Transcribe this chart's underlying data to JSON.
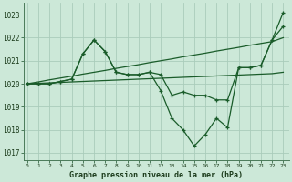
{
  "title": "Graphe pression niveau de la mer (hPa)",
  "xlabel_ticks": [
    0,
    1,
    2,
    3,
    4,
    5,
    6,
    7,
    8,
    9,
    10,
    11,
    12,
    13,
    14,
    15,
    16,
    17,
    18,
    19,
    20,
    21,
    22,
    23
  ],
  "ylim": [
    1016.7,
    1023.5
  ],
  "xlim": [
    -0.3,
    23.5
  ],
  "yticks": [
    1017,
    1018,
    1019,
    1020,
    1021,
    1022,
    1023
  ],
  "bg_color": "#cce8d8",
  "grid_color": "#aaccbb",
  "line_color": "#1a5c2a",
  "line_width": 0.9,
  "marker_size": 3.5,
  "upper_trend": [
    1020.0,
    1020.08,
    1020.17,
    1020.25,
    1020.33,
    1020.42,
    1020.5,
    1020.58,
    1020.67,
    1020.75,
    1020.83,
    1020.92,
    1021.0,
    1021.08,
    1021.17,
    1021.25,
    1021.33,
    1021.42,
    1021.5,
    1021.58,
    1021.67,
    1021.75,
    1021.83,
    1022.0
  ],
  "lower_trend": [
    1020.0,
    1020.02,
    1020.04,
    1020.06,
    1020.08,
    1020.1,
    1020.12,
    1020.14,
    1020.16,
    1020.18,
    1020.2,
    1020.22,
    1020.24,
    1020.26,
    1020.28,
    1020.3,
    1020.32,
    1020.34,
    1020.36,
    1020.38,
    1020.4,
    1020.42,
    1020.44,
    1020.5
  ],
  "volatile1": [
    1020.0,
    1020.0,
    1020.0,
    1020.1,
    1020.2,
    1021.3,
    1021.9,
    1021.4,
    1020.5,
    1020.4,
    1020.4,
    1020.5,
    1020.4,
    1019.5,
    1019.65,
    1019.5,
    1019.5,
    1019.3,
    1019.3,
    1020.7,
    1020.7,
    1020.8,
    1021.9,
    1022.5
  ],
  "volatile2": [
    1020.0,
    1020.0,
    1020.0,
    1020.1,
    1020.2,
    1021.3,
    1021.9,
    1021.4,
    1020.5,
    1020.4,
    1020.4,
    1020.5,
    1019.7,
    1018.5,
    1018.0,
    1017.3,
    1017.8,
    1018.5,
    1018.1,
    1020.7,
    1020.7,
    1020.8,
    1021.9,
    1023.1
  ]
}
